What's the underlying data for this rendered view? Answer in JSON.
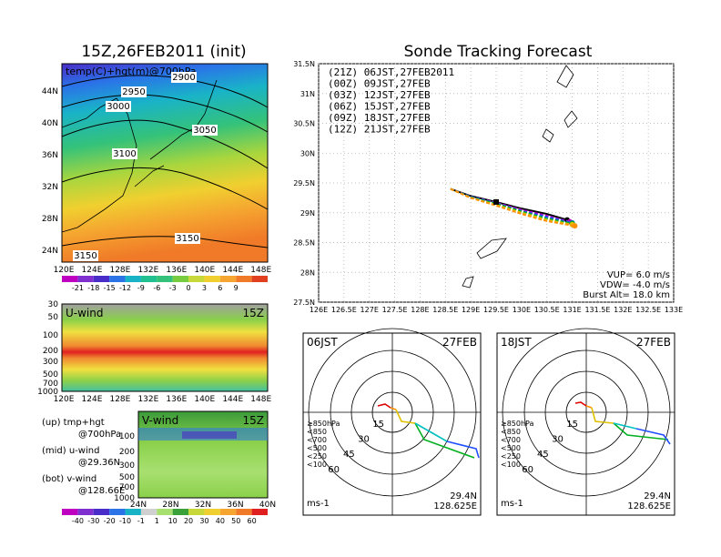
{
  "left": {
    "title": "15Z,26FEB2011 (init)",
    "map": {
      "label": "temp(C)+hgt(m)@700hPa",
      "lon_ticks": [
        "120E",
        "124E",
        "128E",
        "132E",
        "136E",
        "140E",
        "144E",
        "148E"
      ],
      "lat_ticks": [
        "44N",
        "40N",
        "36N",
        "32N",
        "28N",
        "24N"
      ],
      "contours": [
        "2900",
        "2950",
        "3000",
        "3050",
        "3100",
        "3150",
        "3150"
      ],
      "colorbar_labels": [
        "-21",
        "-18",
        "-15",
        "-12",
        "-9",
        "-6",
        "-3",
        "0",
        "3",
        "6",
        "9"
      ]
    },
    "uwind": {
      "label": "U-wind",
      "time": "15Z",
      "p_ticks": [
        "30",
        "50",
        "100",
        "200",
        "300",
        "500",
        "700",
        "1000"
      ],
      "lon_ticks": [
        "120E",
        "124E",
        "128E",
        "132E",
        "136E",
        "140E",
        "144E",
        "148E"
      ]
    },
    "vwind": {
      "label": "V-wind",
      "time": "15Z",
      "p_ticks": [
        "100",
        "200",
        "300",
        "500",
        "700",
        "1000"
      ],
      "lat_ticks": [
        "24N",
        "28N",
        "32N",
        "36N",
        "40N"
      ]
    },
    "notes": [
      [
        "(up) tmp+hgt",
        "@700hPa"
      ],
      [
        "(mid) u-wind",
        "@29.36N"
      ],
      [
        "(bot) v-wind",
        "@128.66E"
      ]
    ],
    "wind_colorbar_labels": [
      "-40",
      "-30",
      "-20",
      "-10",
      "-1",
      "1",
      "10",
      "20",
      "30",
      "40",
      "50",
      "60"
    ]
  },
  "main": {
    "title": "Sonde Tracking Forecast",
    "legend": [
      {
        "text": "(21Z) 06JST,27FEB2011",
        "color": "#000000"
      },
      {
        "text": "(00Z) 09JST,27FEB",
        "color": "#b000c0"
      },
      {
        "text": "(03Z) 12JST,27FEB",
        "color": "#2050ff"
      },
      {
        "text": "(06Z) 15JST,27FEB",
        "color": "#00b020"
      },
      {
        "text": "(09Z) 18JST,27FEB",
        "color": "#e0c000"
      },
      {
        "text": "(12Z) 21JST,27FEB",
        "color": "#ff9000"
      }
    ],
    "lon_ticks": [
      "126E",
      "126.5E",
      "127E",
      "127.5E",
      "128E",
      "128.5E",
      "129E",
      "129.5E",
      "130E",
      "130.5E",
      "131E",
      "131.5E",
      "132E",
      "132.5E",
      "133E"
    ],
    "lat_ticks": [
      "31.5N",
      "31N",
      "30.5N",
      "30N",
      "29.5N",
      "29N",
      "28.5N",
      "28N",
      "27.5N"
    ],
    "params": [
      "VUP=  6.0 m/s",
      "VDW= -4.0 m/s",
      "Burst Alt= 18.0 km"
    ]
  },
  "hodographs": [
    {
      "time": "06JST",
      "date": "27FEB",
      "unit": "ms-1",
      "lat": "29.4N",
      "lon": "128.625E"
    },
    {
      "time": "18JST",
      "date": "27FEB",
      "unit": "ms-1",
      "lat": "29.4N",
      "lon": "128.625E"
    }
  ],
  "hodo_rings": [
    "15",
    "30",
    "45",
    "60"
  ],
  "hodo_legend": [
    {
      "text": "≥850hPa",
      "color": "#e00000"
    },
    {
      "text": "<850",
      "color": "#ff9000"
    },
    {
      "text": "<700",
      "color": "#e0c000"
    },
    {
      "text": "<500",
      "color": "#00b020"
    },
    {
      "text": "<250",
      "color": "#00c0c0"
    },
    {
      "text": "<100",
      "color": "#2050ff"
    }
  ],
  "chart_data": {
    "type": "line",
    "title": "Sonde Tracking Forecast",
    "xlim": [
      126,
      133
    ],
    "ylim": [
      27.5,
      31.5
    ],
    "series": [
      {
        "name": "(21Z) 06JST,27FEB2011",
        "x": [
          128.6,
          129.0,
          129.5,
          130.0,
          130.5,
          130.9
        ],
        "y": [
          29.4,
          29.28,
          29.18,
          29.07,
          28.98,
          28.88
        ]
      },
      {
        "name": "(00Z) 09JST,27FEB",
        "x": [
          128.6,
          129.0,
          129.5,
          130.0,
          130.5,
          130.95
        ],
        "y": [
          29.4,
          29.27,
          29.17,
          29.05,
          28.95,
          28.85
        ]
      },
      {
        "name": "(03Z) 12JST,27FEB",
        "x": [
          128.6,
          129.0,
          129.5,
          130.0,
          130.5,
          131.0
        ],
        "y": [
          29.4,
          29.27,
          29.16,
          29.03,
          28.93,
          28.83
        ]
      },
      {
        "name": "(06Z) 15JST,27FEB",
        "x": [
          128.6,
          129.0,
          129.5,
          130.0,
          130.5,
          131.0
        ],
        "y": [
          29.4,
          29.26,
          29.15,
          29.02,
          28.9,
          28.82
        ]
      },
      {
        "name": "(09Z) 18JST,27FEB",
        "x": [
          128.6,
          129.0,
          129.5,
          130.0,
          130.5,
          131.0
        ],
        "y": [
          29.4,
          29.25,
          29.13,
          29.0,
          28.88,
          28.8
        ]
      },
      {
        "name": "(12Z) 21JST,27FEB",
        "x": [
          128.6,
          129.0,
          129.5,
          130.0,
          130.5,
          131.05
        ],
        "y": [
          29.4,
          29.25,
          29.12,
          28.98,
          28.86,
          28.78
        ]
      }
    ]
  }
}
